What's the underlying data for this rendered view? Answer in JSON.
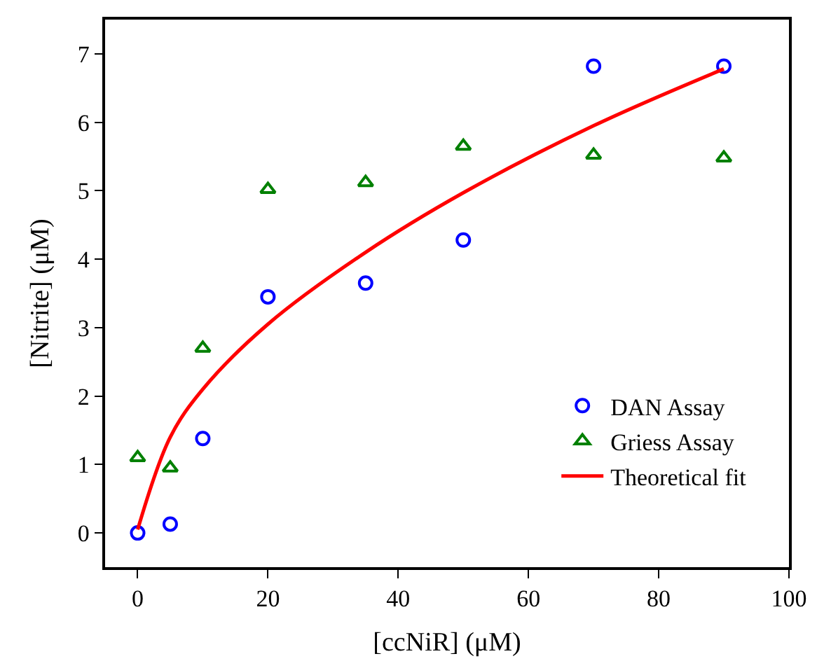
{
  "chart_data": {
    "type": "scatter",
    "xlabel": "[ccNiR] (μM)",
    "ylabel": "[Nitrite] (μM)",
    "x": [
      0,
      5,
      10,
      20,
      35,
      50,
      70,
      90
    ],
    "series": [
      {
        "name": "DAN Assay",
        "marker": "circle",
        "color": "#0000ff",
        "values": [
          0.0,
          0.13,
          1.38,
          3.45,
          3.65,
          4.28,
          6.82,
          6.82
        ]
      },
      {
        "name": "Griess Assay",
        "marker": "triangle",
        "color": "#008000",
        "values": [
          1.1,
          0.95,
          2.7,
          5.02,
          5.12,
          5.65,
          5.52,
          5.48
        ]
      },
      {
        "name": "Theoretical fit",
        "type": "line",
        "marker": "none",
        "line_style": "solid",
        "color": "#ff0000",
        "values": [
          0.05,
          1.4,
          2.1,
          3.05,
          4.1,
          4.97,
          5.95,
          6.78
        ]
      }
    ],
    "xlim": [
      -5,
      100
    ],
    "xticks": [
      0,
      20,
      40,
      60,
      80,
      100
    ],
    "ylim": [
      -0.5,
      7.5
    ],
    "yticks": [
      0,
      1,
      2,
      3,
      4,
      5,
      6,
      7
    ],
    "legend": "bottom right"
  }
}
